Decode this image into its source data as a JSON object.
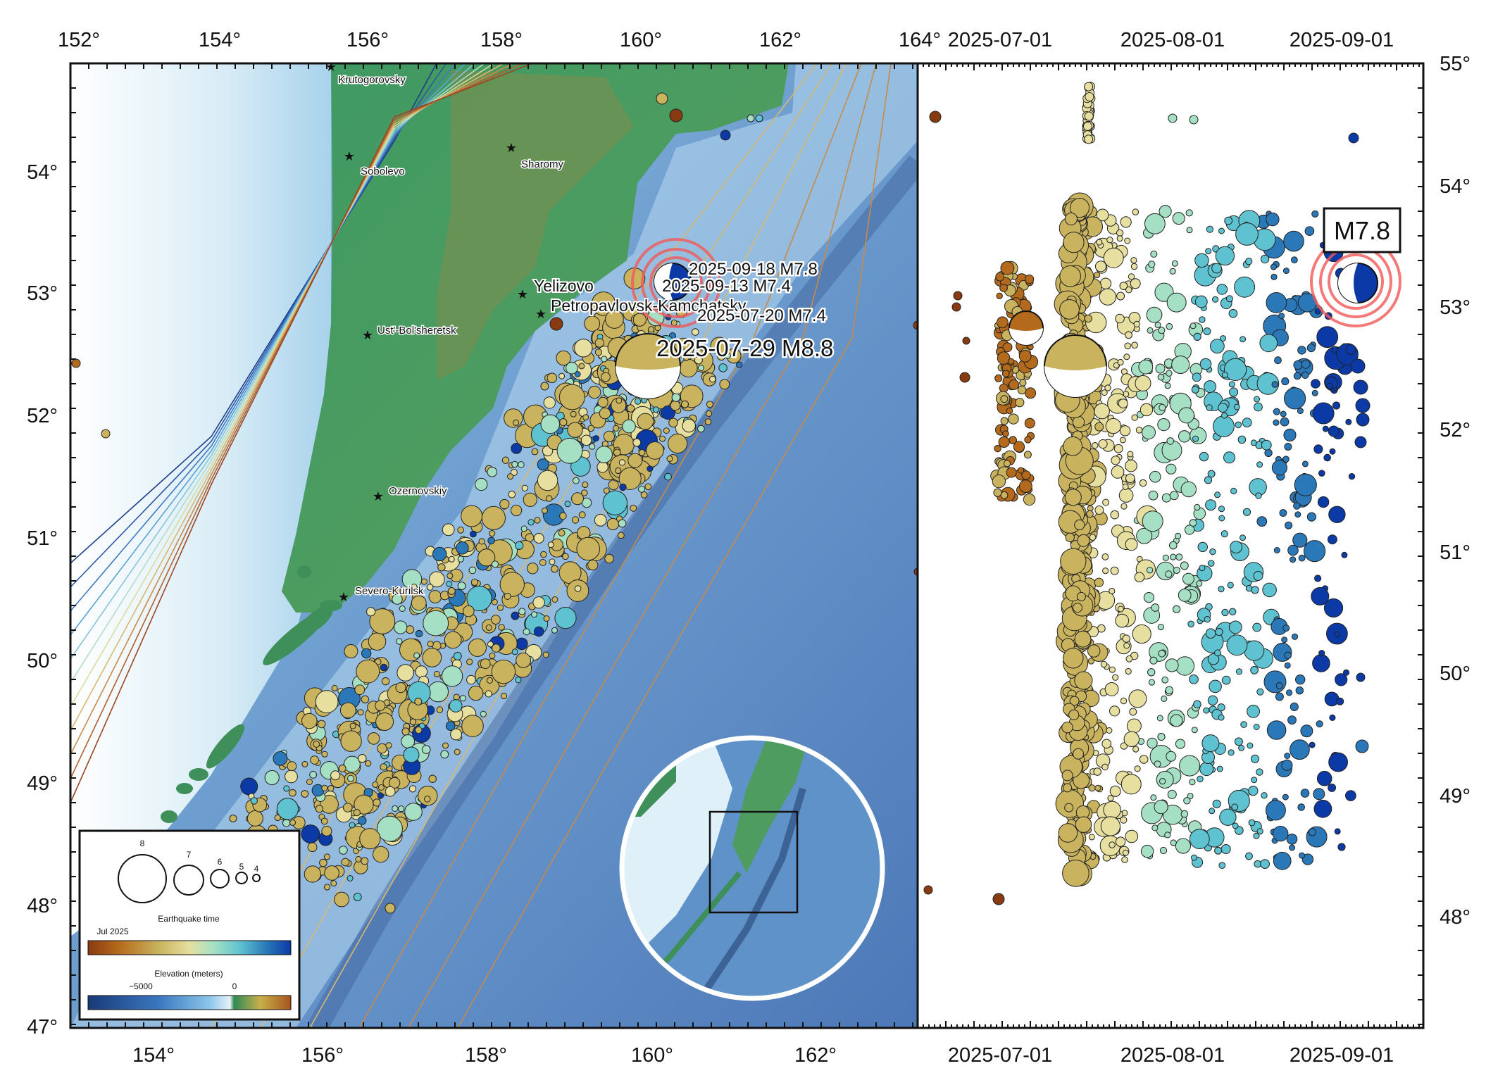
{
  "map": {
    "lon_ticks_top": [
      "152°",
      "154°",
      "156°",
      "158°",
      "160°",
      "162°",
      "164°"
    ],
    "lon_ticks_bottom": [
      "154°",
      "156°",
      "158°",
      "160°",
      "162°"
    ],
    "lat_ticks": [
      "55°",
      "54°",
      "53°",
      "52°",
      "51°",
      "50°",
      "49°",
      "48°",
      "47°"
    ],
    "cities": [
      {
        "name": "Krutogorovsky",
        "size": "small"
      },
      {
        "name": "Sobolevo",
        "size": "small"
      },
      {
        "name": "Sharomy",
        "size": "small"
      },
      {
        "name": "Yelizovo",
        "size": "big"
      },
      {
        "name": "Petropavlovsk-Kamchatsky",
        "size": "big"
      },
      {
        "name": "Ust'-Bol'sheretsk",
        "size": "small"
      },
      {
        "name": "Ozernovskiy",
        "size": "small"
      },
      {
        "name": "Severo-Kurilsk",
        "size": "small"
      }
    ],
    "callouts": [
      {
        "text": "2025-09-18 M7.8"
      },
      {
        "text": "2025-09-13 M7.4"
      },
      {
        "text": "2025-07-20 M7.4"
      },
      {
        "text": "2025-07-29 M8.8"
      }
    ]
  },
  "legend": {
    "magnitudes": [
      "8",
      "7",
      "6",
      "5",
      "4"
    ],
    "time_title": "Earthquake time",
    "time_start": "Jul 2025",
    "elev_title": "Elevation (meters)",
    "elev_ticks": [
      "−5000",
      "0"
    ]
  },
  "timeplot": {
    "date_ticks": [
      "2025-07-01",
      "2025-08-01",
      "2025-09-01"
    ],
    "lat_ticks_right": [
      "55°",
      "54°",
      "53°",
      "52°",
      "51°",
      "50°",
      "49°",
      "48°"
    ],
    "label": "M7.8"
  },
  "colors": {
    "time_gradient": [
      "#8a3a10",
      "#b46a1c",
      "#c9b35e",
      "#e6df9f",
      "#a6e0c4",
      "#5fc2d0",
      "#2a78b8",
      "#0b3aa6"
    ],
    "elev_gradient": [
      "#1a3a78",
      "#3a78c0",
      "#8cc6ea",
      "#e6f2f8",
      "#2f8a55",
      "#c8b04a",
      "#a8541c"
    ],
    "highlight": "#f25a5a"
  }
}
